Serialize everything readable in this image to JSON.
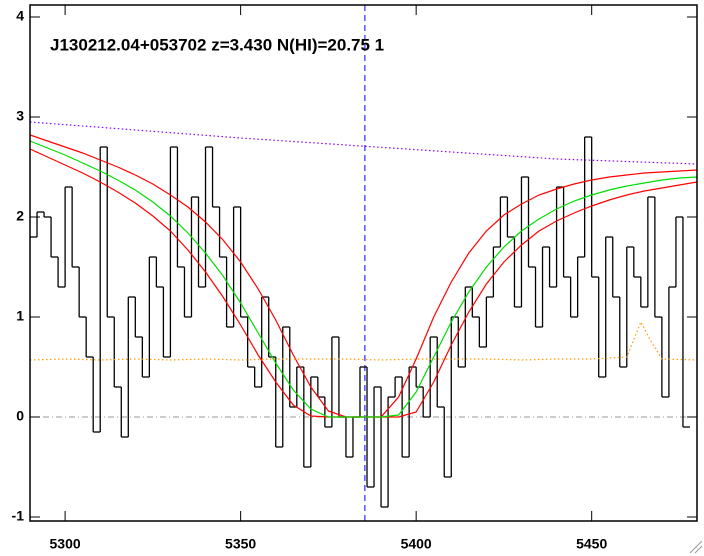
{
  "chart_data": {
    "type": "line",
    "title": "J130212.04+053702 z=3.430 N(HI)=20.75 1",
    "xlim": [
      5290,
      5480
    ],
    "ylim": [
      -1.04,
      4.12
    ],
    "xticks": [
      5300,
      5350,
      5400,
      5450
    ],
    "yticks": [
      -1,
      0,
      1,
      2,
      3,
      4
    ],
    "hline": 0,
    "vline": 5385.4,
    "series": [
      {
        "style": "step",
        "color": "#000000",
        "x": [
          5291,
          5293,
          5295,
          5297,
          5299,
          5301,
          5303,
          5305,
          5307,
          5309,
          5311,
          5313,
          5315,
          5317,
          5319,
          5321,
          5323,
          5325,
          5327,
          5329,
          5331,
          5333,
          5335,
          5337,
          5339,
          5341,
          5343,
          5345,
          5347,
          5349,
          5351,
          5353,
          5355,
          5357,
          5359,
          5361,
          5363,
          5365,
          5367,
          5369,
          5371,
          5373,
          5375,
          5377,
          5379,
          5381,
          5383,
          5385,
          5387,
          5389,
          5391,
          5393,
          5395,
          5397,
          5399,
          5401,
          5403,
          5405,
          5407,
          5409,
          5411,
          5413,
          5415,
          5417,
          5419,
          5421,
          5423,
          5425,
          5427,
          5429,
          5431,
          5433,
          5435,
          5437,
          5439,
          5441,
          5443,
          5445,
          5447,
          5449,
          5451,
          5453,
          5455,
          5457,
          5459,
          5461,
          5463,
          5465,
          5467,
          5469,
          5471,
          5473,
          5475,
          5477
        ],
        "values": [
          1.8,
          2.05,
          2.0,
          1.6,
          1.3,
          2.3,
          1.5,
          1.0,
          0.6,
          -0.15,
          2.7,
          1.0,
          0.3,
          -0.2,
          1.2,
          0.8,
          0.4,
          1.6,
          1.3,
          0.6,
          2.7,
          1.5,
          1.0,
          2.2,
          1.3,
          2.7,
          2.1,
          1.6,
          0.9,
          2.1,
          1.0,
          0.5,
          0.3,
          1.2,
          0.6,
          -0.3,
          0.9,
          0.1,
          0.5,
          -0.5,
          0.4,
          0.2,
          -0.1,
          0.8,
          0.0,
          -0.4,
          0.0,
          0.5,
          -0.7,
          0.3,
          -0.9,
          0.2,
          0.4,
          -0.4,
          0.5,
          0.3,
          0.0,
          0.8,
          0.1,
          -0.6,
          1.0,
          0.5,
          1.3,
          1.0,
          0.7,
          1.2,
          1.7,
          2.2,
          1.8,
          1.1,
          2.4,
          1.5,
          0.9,
          1.7,
          1.3,
          2.3,
          1.4,
          1.0,
          1.6,
          2.8,
          1.4,
          0.4,
          1.8,
          1.2,
          0.5,
          1.7,
          1.4,
          1.1,
          2.2,
          1.0,
          0.2,
          1.3,
          2.0,
          -0.1
        ]
      },
      {
        "style": "solid",
        "color": "#ff0000",
        "x": [
          5290,
          5295,
          5300,
          5305,
          5310,
          5315,
          5320,
          5325,
          5330,
          5335,
          5340,
          5345,
          5350,
          5355,
          5360,
          5365,
          5370,
          5375,
          5380,
          5385,
          5390,
          5395,
          5400,
          5405,
          5410,
          5415,
          5420,
          5425,
          5430,
          5435,
          5440,
          5445,
          5450,
          5455,
          5460,
          5465,
          5470,
          5475,
          5480
        ],
        "values": [
          2.82,
          2.76,
          2.7,
          2.64,
          2.57,
          2.5,
          2.42,
          2.33,
          2.22,
          2.1,
          1.95,
          1.77,
          1.55,
          1.28,
          0.97,
          0.62,
          0.3,
          0.06,
          0,
          0,
          0,
          0.2,
          0.58,
          1.0,
          1.35,
          1.64,
          1.86,
          2.02,
          2.13,
          2.22,
          2.28,
          2.33,
          2.37,
          2.4,
          2.42,
          2.44,
          2.45,
          2.46,
          2.47
        ]
      },
      {
        "style": "solid",
        "color": "#ff0000",
        "x": [
          5290,
          5295,
          5300,
          5305,
          5310,
          5315,
          5320,
          5325,
          5330,
          5335,
          5340,
          5345,
          5350,
          5355,
          5360,
          5365,
          5370,
          5375,
          5380,
          5385,
          5390,
          5395,
          5400,
          5405,
          5410,
          5415,
          5420,
          5425,
          5430,
          5435,
          5440,
          5445,
          5450,
          5455,
          5460,
          5465,
          5470,
          5475,
          5480
        ],
        "values": [
          2.68,
          2.6,
          2.52,
          2.44,
          2.35,
          2.25,
          2.14,
          2.01,
          1.86,
          1.67,
          1.45,
          1.2,
          0.92,
          0.62,
          0.35,
          0.12,
          0.01,
          0,
          0,
          0,
          0,
          0,
          0.05,
          0.35,
          0.72,
          1.05,
          1.33,
          1.55,
          1.72,
          1.86,
          1.96,
          2.04,
          2.11,
          2.17,
          2.22,
          2.26,
          2.29,
          2.32,
          2.35
        ]
      },
      {
        "style": "solid",
        "color": "#00dd00",
        "x": [
          5290,
          5295,
          5300,
          5305,
          5310,
          5315,
          5320,
          5325,
          5330,
          5335,
          5340,
          5345,
          5350,
          5355,
          5360,
          5365,
          5370,
          5375,
          5380,
          5385,
          5390,
          5395,
          5400,
          5405,
          5410,
          5415,
          5420,
          5425,
          5430,
          5435,
          5440,
          5445,
          5450,
          5455,
          5460,
          5465,
          5470,
          5475,
          5480
        ],
        "values": [
          2.76,
          2.69,
          2.62,
          2.54,
          2.46,
          2.37,
          2.27,
          2.15,
          2.01,
          1.84,
          1.64,
          1.41,
          1.14,
          0.84,
          0.54,
          0.27,
          0.08,
          0,
          0,
          0,
          0,
          0.02,
          0.25,
          0.6,
          0.95,
          1.25,
          1.5,
          1.7,
          1.86,
          1.98,
          2.08,
          2.16,
          2.22,
          2.27,
          2.31,
          2.34,
          2.37,
          2.39,
          2.4
        ]
      },
      {
        "style": "dotted",
        "color": "#8800ff",
        "x": [
          5290,
          5320,
          5350,
          5380,
          5410,
          5440,
          5480
        ],
        "values": [
          2.95,
          2.87,
          2.79,
          2.72,
          2.65,
          2.58,
          2.53
        ]
      },
      {
        "style": "dotted",
        "color": "#ff9900",
        "x": [
          5290,
          5300,
          5310,
          5320,
          5330,
          5340,
          5350,
          5360,
          5370,
          5380,
          5390,
          5400,
          5410,
          5420,
          5430,
          5440,
          5450,
          5460,
          5464,
          5467,
          5470,
          5480
        ],
        "values": [
          0.57,
          0.58,
          0.57,
          0.58,
          0.57,
          0.58,
          0.57,
          0.58,
          0.58,
          0.58,
          0.57,
          0.58,
          0.58,
          0.58,
          0.57,
          0.58,
          0.58,
          0.6,
          0.95,
          0.75,
          0.58,
          0.57
        ]
      }
    ]
  }
}
